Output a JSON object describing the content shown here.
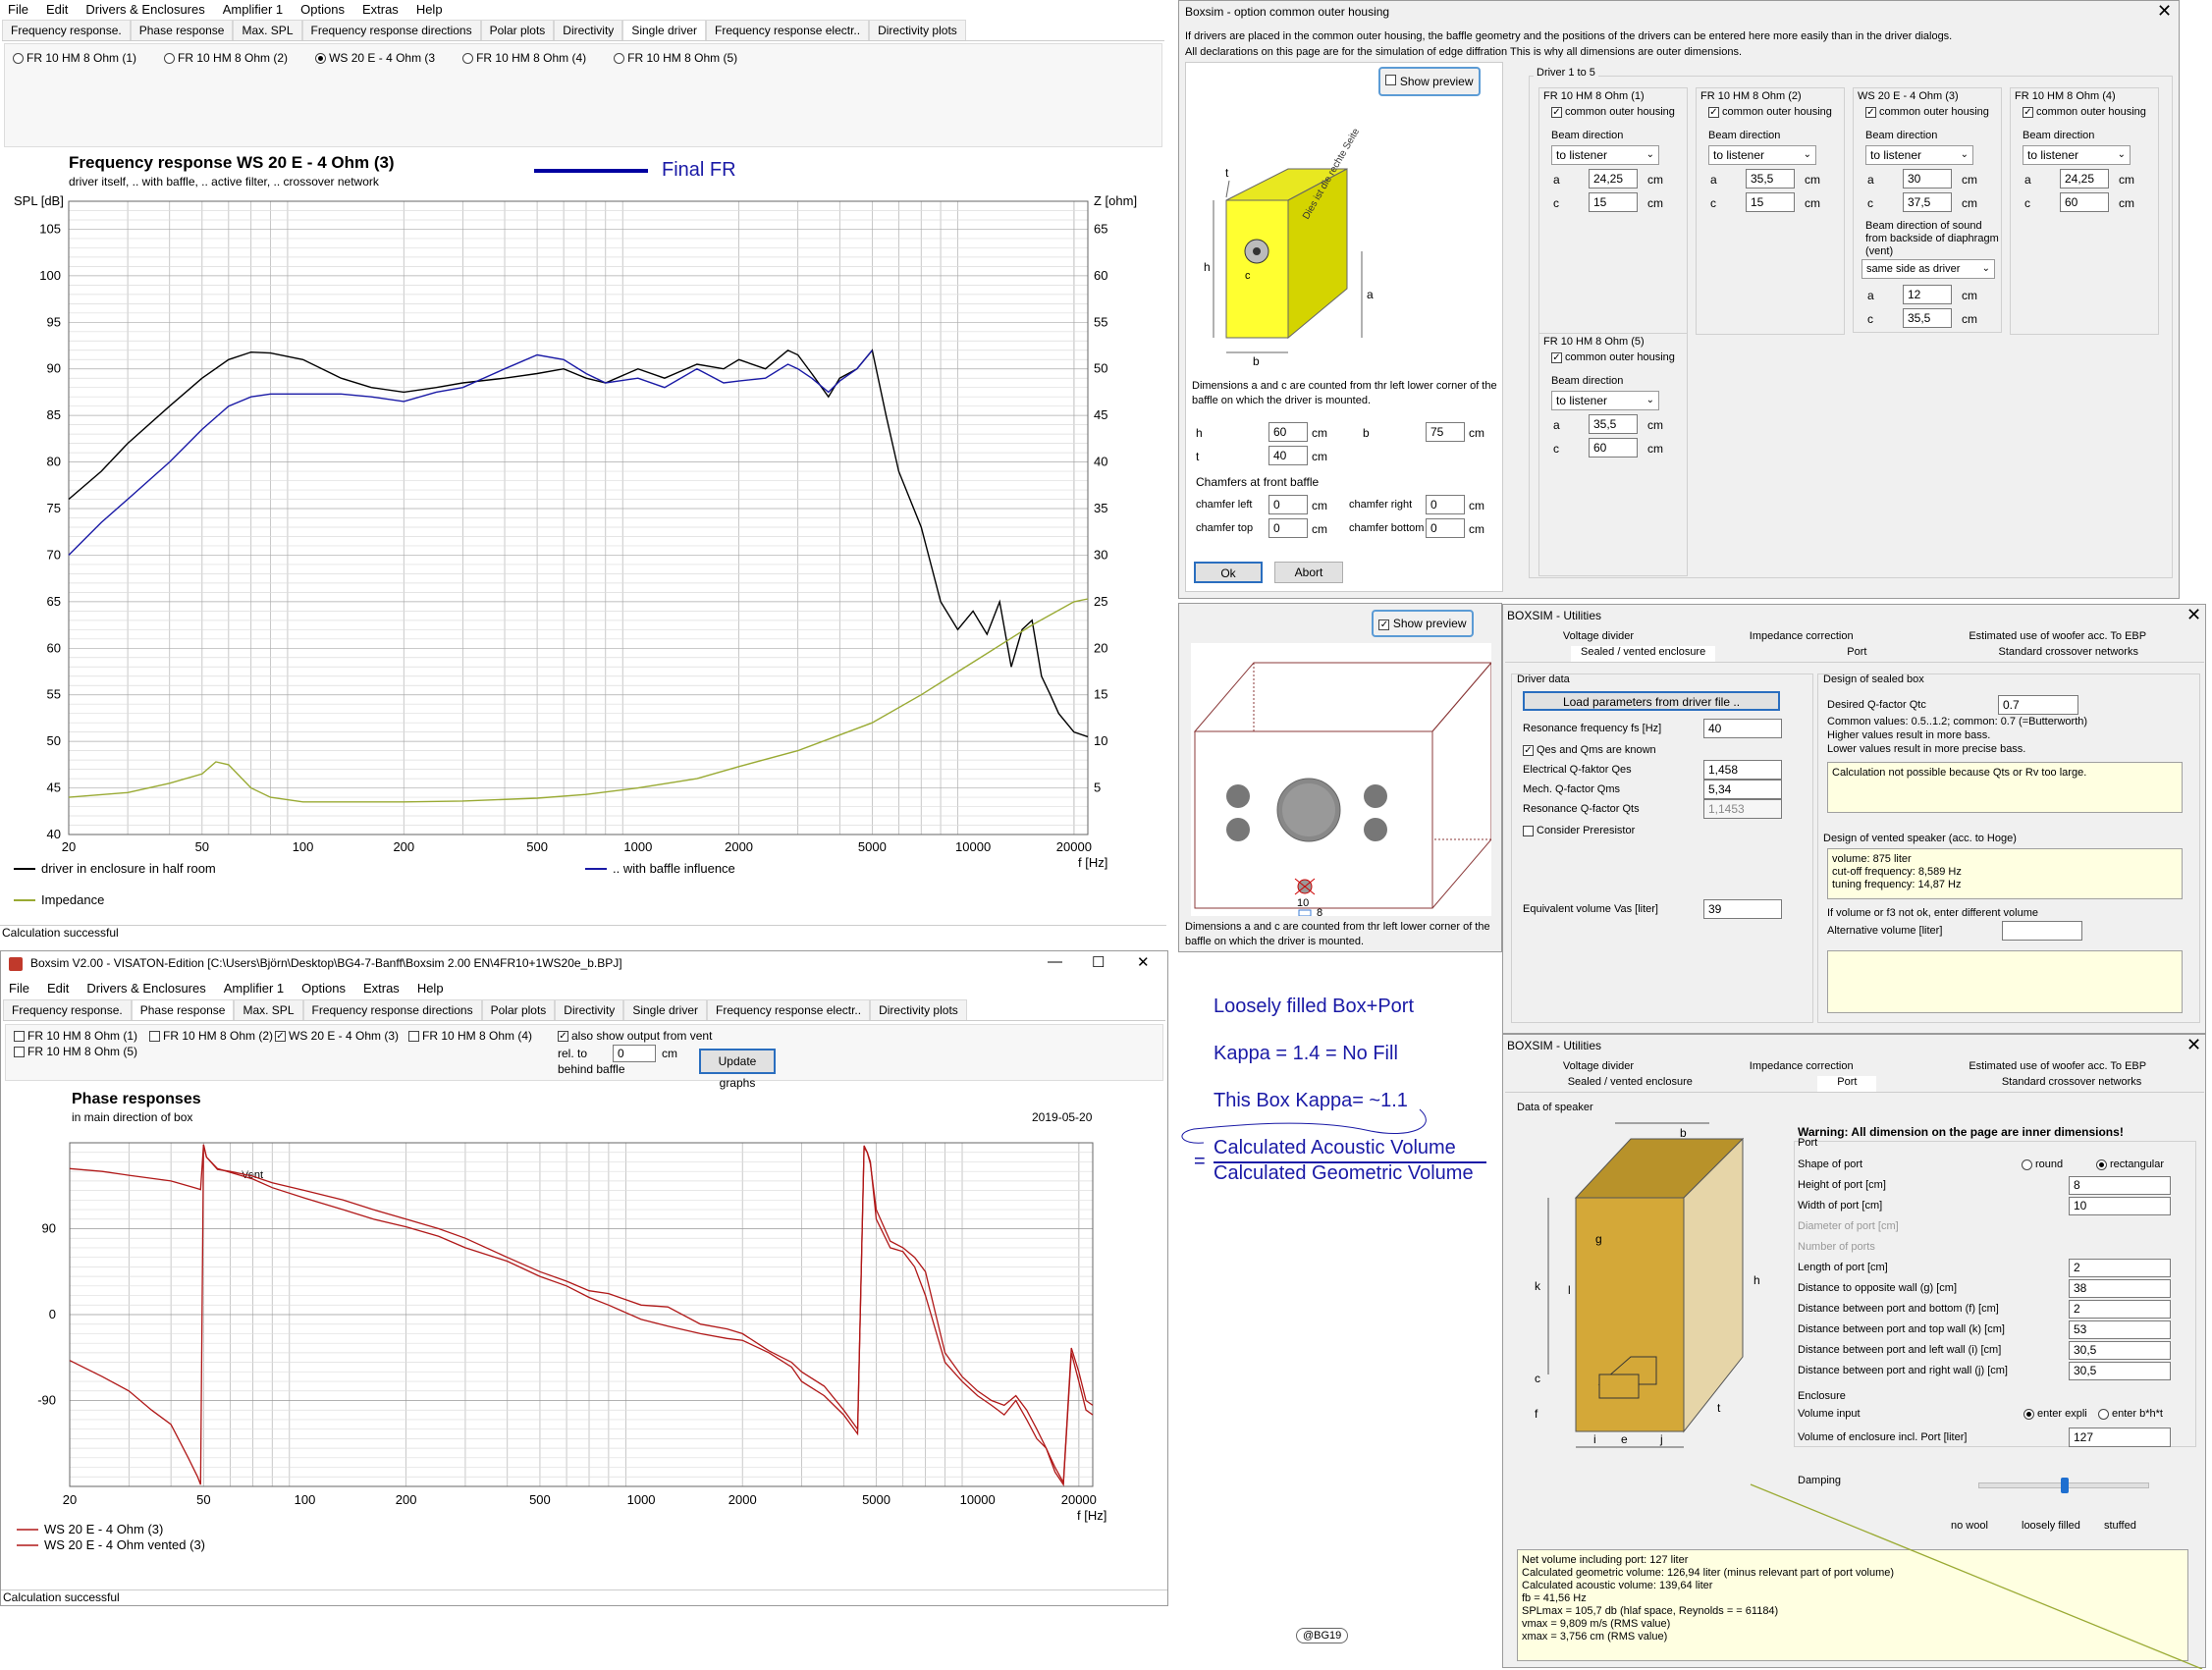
{
  "main": {
    "menu": [
      "File",
      "Edit",
      "Drivers & Enclosures",
      "Amplifier 1",
      "Options",
      "Extras",
      "Help"
    ],
    "tabs": [
      "Frequency response.",
      "Phase response",
      "Max. SPL",
      "Frequency response directions",
      "Polar plots",
      "Directivity",
      "Single driver",
      "Frequency response electr..",
      "Directivity plots"
    ],
    "drivers": [
      "FR 10 HM 8 Ohm (1)",
      "FR 10 HM 8 Ohm (2)",
      "WS 20 E - 4 Ohm  (3",
      "FR 10 HM 8 Ohm (4)",
      "FR 10 HM 8 Ohm (5)"
    ],
    "chart_title": "Frequency response WS 20 E - 4 Ohm   (3)",
    "chart_subtitle": "driver itself, .. with baffle, .. active filter, .. crossover network",
    "annotation": "Final FR",
    "status": "Calculation successful"
  },
  "phase_win": {
    "title": "Boxsim V2.00 - VISATON-Edition [C:\\Users\\Björn\\Desktop\\BG4-7-Banff\\Boxsim 2.00 EN\\4FR10+1WS20e_b.BPJ]",
    "win_buttons": [
      "—",
      "☐",
      "✕"
    ],
    "menu": [
      "File",
      "Edit",
      "Drivers & Enclosures",
      "Amplifier 1",
      "Options",
      "Extras",
      "Help"
    ],
    "tabs": [
      "Frequency response.",
      "Phase response",
      "Max. SPL",
      "Frequency response directions",
      "Polar plots",
      "Directivity",
      "Single driver",
      "Frequency response electr..",
      "Directivity plots"
    ],
    "drivers": [
      "FR 10 HM 8 Ohm (1)",
      "FR 10 HM 8 Ohm (5)",
      "FR 10 HM 8 Ohm (2)",
      "WS 20 E - 4 Ohm  (3)",
      "FR 10 HM 8 Ohm (4)"
    ],
    "vent_label": "also show output from vent",
    "rel_label": "rel. to",
    "rel_label2": "behind baffle",
    "rel_value": "0",
    "rel_unit": "cm",
    "update": "Update graphs",
    "chart_title": "Phase responses",
    "chart_subtitle": "in main direction of box",
    "date": "2019-05-20",
    "vent_anno": "Vent",
    "status": "Calculation successful"
  },
  "housing": {
    "title": "Boxsim - option common outer housing",
    "close": "✕",
    "info1": "If drivers are placed in the common outer housing,  the baffle geometry and the positions of the drivers can be entered here more easily than in the driver dialogs.",
    "info2": "All declarations on this page are for the simulation of edge diffration This is why all dimensions are outer dimensions.",
    "show_preview": "Show preview",
    "box_text": "Dies ist die rechte Seite",
    "diagram_labels": {
      "t": "t",
      "h": "h",
      "c": "c",
      "b": "b",
      "a": "a"
    },
    "dim_note": "Dimensions a and c are counted from thr left lower corner of the baffle on which the driver is mounted.",
    "h_label": "h",
    "h": "60",
    "b_label": "b",
    "b": "75",
    "t_label": "t",
    "t": "40",
    "unit": "cm",
    "chamfers": "Chamfers at front baffle",
    "chamfer_left": "chamfer left",
    "chamfer_right": "chamfer right",
    "chamfer_top": "chamfer top",
    "chamfer_bottom": "chamfer bottom",
    "chamfer_val": "0",
    "ok": "Ok",
    "abort": "Abort",
    "group": "Driver 1 to 5",
    "common": "common outer housing",
    "beam": "Beam direction",
    "to_listener": "to listener",
    "a_label": "a",
    "c_label": "c",
    "d1": {
      "name": "FR 10 HM 8 Ohm (1)",
      "a": "24,25",
      "c": "15"
    },
    "d2": {
      "name": "FR 10 HM 8 Ohm (2)",
      "a": "35,5",
      "c": "15"
    },
    "d3": {
      "name": "WS 20 E - 4 Ohm   (3)",
      "a": "30",
      "c": "37,5",
      "vent_beam": "Beam direction of sound from backside of diaphragm (vent)",
      "vent_sel": "same side as driver",
      "va": "12",
      "vc": "35,5"
    },
    "d4": {
      "name": "FR 10 HM 8 Ohm (4)",
      "a": "24,25",
      "c": "60"
    },
    "d5": {
      "name": "FR 10 HM 8 Ohm (5)",
      "a": "35,5",
      "c": "60"
    }
  },
  "preview": {
    "show_preview": "Show preview",
    "label10": "10",
    "label8": "8",
    "note": "Dimensions a and c are counted from thr left lower corner of the baffle on which the driver is mounted."
  },
  "annot": {
    "line1": "Loosely filled Box+Port",
    "line2": "Kappa = 1.4  = No Fill",
    "line3": "This Box Kappa= ~1.1",
    "eq": "=",
    "num": "Calculated Acoustic Volume",
    "den": "Calculated Geometric Volume",
    "credit": "@BG19"
  },
  "util1": {
    "title": "BOXSIM - Utilities",
    "close": "✕",
    "tabs_top": [
      "Voltage divider",
      "Impedance correction",
      "Estimated use of woofer acc. To EBP"
    ],
    "tabs_bot": [
      "Sealed / vented enclosure",
      "Port",
      "Standard crossover networks"
    ],
    "driver_data": "Driver data",
    "load": "Load parameters  from driver file ..",
    "fs_label": "Resonance frequency fs [Hz]",
    "fs": "40",
    "qes_known": "Qes and Qms are known",
    "qes_label": "Electrical Q-faktor Qes",
    "qes": "1,458",
    "qms_label": "Mech. Q-factor Qms",
    "qms": "5,34",
    "qts_label": "Resonance Q-factor Qts",
    "qts": "1,1453",
    "prer": "Consider Preresistor",
    "vas_label": "Equivalent volume Vas [liter]",
    "vas": "39",
    "sealed": "Design of sealed box",
    "qtc_label": "Desired Q-factor Qtc",
    "qtc": "0.7",
    "common_vals": "Common values: 0.5..1.2; common: 0.7 (=Butterworth)",
    "higher": "Higher values result in more bass.",
    "lower": "Lower values result in more precise bass.",
    "calc_err": "Calculation not possible because Qts or Rv too large.",
    "vented": "Design of vented speaker (acc. to Hoge)",
    "vented_res": "volume: 875 liter\ncut-off frequency: 8,589 Hz\ntuning frequency: 14,87 Hz",
    "alt_note": "If volume or f3 not ok, enter different volume",
    "alt_label": "Alternative volume [liter]"
  },
  "util2": {
    "title": "BOXSIM - Utilities",
    "close": "✕",
    "tabs_top": [
      "Voltage divider",
      "Impedance correction",
      "Estimated use of woofer acc. To EBP"
    ],
    "tabs_bot": [
      "Sealed / vented enclosure",
      "Port",
      "Standard crossover networks"
    ],
    "data": "Data of speaker",
    "warning": "Warning: All dimension on the page are inner dimensions!",
    "port": "Port",
    "shape": "Shape of port",
    "round": "round",
    "rect": "rectangular",
    "rows": [
      {
        "label": "Height of port [cm]",
        "val": "8"
      },
      {
        "label": "Width of port [cm]",
        "val": "10"
      },
      {
        "label": "Diameter of port [cm]",
        "val": ""
      },
      {
        "label": "Number of ports",
        "val": ""
      },
      {
        "label": "Length of port [cm]",
        "val": "2"
      },
      {
        "label": "Distance to opposite wall (g) [cm]",
        "val": "38"
      },
      {
        "label": "Distance between port and bottom (f) [cm]",
        "val": "2"
      },
      {
        "label": "Distance between port and top wall (k) [cm]",
        "val": "53"
      },
      {
        "label": "Distance between port and left wall (i) [cm]",
        "val": "30,5"
      },
      {
        "label": "Distance between port and right wall (j) [cm]",
        "val": "30,5"
      }
    ],
    "enclosure": "Enclosure",
    "vol_input": "Volume input",
    "explicit": "enter expli",
    "bht": "enter b*h*t",
    "vol_label": "Volume of enclosure incl. Port [liter]",
    "vol": "127",
    "damping": "Damping",
    "damp_levels": [
      "no wool",
      "loosely filled",
      "stuffed"
    ],
    "damping_level": 0.5,
    "box_labels": {
      "b": "b",
      "h": "h",
      "t": "t",
      "g": "g",
      "k": "k",
      "l": "l",
      "c": "c",
      "f": "f",
      "i": "i",
      "e": "e",
      "j": "j"
    },
    "results": "Net volume including port: 127 liter\nCalculated geometric volume: 126,94 liter (minus relevant part of port volume)\nCalculated acoustic volume: 139,64 liter\nfb = 41,56 Hz\nSPLmax = 105,7 db (hlaf space, Reynolds = = 61184)\nvmax = 9,809 m/s (RMS value)\nxmax = 3,756 cm (RMS value)"
  },
  "chart_data": [
    {
      "type": "line",
      "title": "Frequency response WS 20 E - 4 Ohm   (3)",
      "xlabel": "f [Hz]",
      "ylabel": "SPL [dB]",
      "y2label": "Z [ohm]",
      "xscale": "log",
      "xlim": [
        20,
        22000
      ],
      "ylim": [
        40,
        108
      ],
      "y2lim": [
        0,
        68
      ],
      "xticks": [
        20,
        50,
        100,
        200,
        500,
        1000,
        2000,
        5000,
        10000,
        20000
      ],
      "xtick_labels": [
        "20",
        "50",
        "100",
        "200",
        "500",
        "1000",
        "2000",
        "5000",
        "10000",
        "20000"
      ],
      "yticks": [
        40,
        45,
        50,
        55,
        60,
        65,
        70,
        75,
        80,
        85,
        90,
        95,
        100,
        105
      ],
      "y2ticks": [
        5,
        10,
        15,
        20,
        25,
        30,
        35,
        40,
        45,
        50,
        55,
        60,
        65
      ],
      "legend": [
        "driver in enclosure in half room",
        ".. with baffle influence",
        "Impedance"
      ],
      "series": [
        {
          "name": "driver in enclosure in half room",
          "color": "#000000",
          "axis": "left",
          "x": [
            20,
            25,
            30,
            40,
            50,
            60,
            70,
            80,
            100,
            130,
            160,
            200,
            250,
            300,
            400,
            500,
            600,
            700,
            800,
            1000,
            1200,
            1500,
            1800,
            2000,
            2400,
            2800,
            3000,
            3300,
            3700,
            4000,
            4500,
            5000,
            5500,
            6000,
            7000,
            8000,
            9000,
            10000,
            11000,
            12000,
            13000,
            14000,
            15000,
            16000,
            17000,
            18000,
            20000,
            22000
          ],
          "y": [
            76,
            79,
            82,
            86,
            89,
            91,
            91.8,
            91.7,
            91,
            89,
            88,
            87.5,
            88,
            88.5,
            89,
            89.5,
            90,
            89,
            88.5,
            90,
            89,
            90.5,
            90,
            91,
            90,
            92,
            91.5,
            89.5,
            87,
            89,
            90,
            92,
            85,
            79,
            73,
            65,
            62,
            64,
            61.5,
            65,
            58,
            62,
            63,
            57,
            55,
            53,
            51,
            50.5
          ]
        },
        {
          "name": ".. with baffle influence",
          "color": "#1a1aa6",
          "axis": "left",
          "x": [
            20,
            25,
            30,
            40,
            50,
            60,
            70,
            80,
            100,
            130,
            160,
            200,
            250,
            300,
            400,
            500,
            600,
            700,
            800,
            1000,
            1200,
            1500,
            1800,
            2000,
            2400,
            2800,
            3000,
            3300,
            3700,
            4000,
            4500,
            5000
          ],
          "y": [
            70,
            73.5,
            76,
            80,
            83.5,
            86,
            87,
            87.3,
            87.3,
            87.3,
            87,
            86.5,
            87.5,
            88,
            90,
            91.5,
            91,
            89.5,
            88.5,
            89,
            88,
            90,
            88.5,
            88.7,
            89,
            90.5,
            90,
            89,
            87.5,
            88.7,
            90,
            92
          ]
        },
        {
          "name": "Impedance",
          "color": "#99aa33",
          "axis": "right",
          "x": [
            20,
            30,
            40,
            50,
            55,
            60,
            70,
            80,
            100,
            150,
            200,
            300,
            500,
            700,
            1000,
            1500,
            2000,
            3000,
            5000,
            7000,
            10000,
            15000,
            20000,
            22000
          ],
          "y": [
            4,
            4.5,
            5.5,
            6.5,
            7.8,
            7.5,
            5,
            4,
            3.5,
            3.5,
            3.5,
            3.6,
            3.9,
            4.3,
            5,
            6,
            7.3,
            9,
            12,
            15,
            18.5,
            22.5,
            25,
            25.3
          ]
        }
      ]
    },
    {
      "type": "line",
      "title": "Phase responses",
      "subtitle": "in main direction of box",
      "xlabel": "f [Hz]",
      "xscale": "log",
      "xlim": [
        20,
        22000
      ],
      "ylim": [
        -180,
        180
      ],
      "xticks": [
        20,
        50,
        100,
        200,
        500,
        1000,
        2000,
        5000,
        10000,
        20000
      ],
      "xtick_labels": [
        "20",
        "50",
        "100",
        "200",
        "500",
        "1000",
        "2000",
        "5000",
        "10000",
        "20000"
      ],
      "yticks": [
        90,
        0,
        -90
      ],
      "legend": [
        "WS 20 E - 4 Ohm  (3)",
        "WS 20 E - 4 Ohm   vented (3)"
      ],
      "series": [
        {
          "name": "WS 20 E - 4 Ohm  (3)",
          "color": "#b01818",
          "x": [
            20,
            25,
            30,
            40,
            47,
            49,
            50,
            51,
            55,
            60,
            70,
            80,
            100,
            130,
            160,
            200,
            250,
            300,
            400,
            500,
            600,
            700,
            800,
            1000,
            1200,
            1500,
            1800,
            2000,
            2400,
            2800,
            3000,
            3500,
            4000,
            4400,
            4600,
            4700,
            4800,
            5000,
            5500,
            6000,
            6500,
            7000,
            8000,
            9000,
            10000,
            11000,
            12000,
            13000,
            14000,
            15000,
            16000,
            17000,
            18000,
            19000,
            20000,
            21000,
            22000
          ],
          "y": [
            153,
            150,
            146,
            140,
            133,
            131,
            178,
            165,
            152,
            150,
            145,
            138,
            130,
            120,
            110,
            100,
            90,
            80,
            60,
            45,
            35,
            25,
            22,
            10,
            8,
            -10,
            -15,
            -20,
            -38,
            -50,
            -60,
            -75,
            -100,
            -120,
            175,
            170,
            160,
            100,
            70,
            66,
            50,
            20,
            -50,
            -70,
            -85,
            -95,
            -105,
            -90,
            -110,
            -130,
            -140,
            -165,
            -178,
            -40,
            -70,
            -100,
            -105
          ]
        },
        {
          "name": "WS 20 E - 4 Ohm   vented (3)",
          "color": "#b01818",
          "x": [
            20,
            25,
            30,
            35,
            40,
            45,
            48,
            49,
            50,
            51,
            55,
            60,
            70,
            80,
            100,
            130,
            160,
            200,
            250,
            300,
            400,
            500,
            600,
            700,
            800,
            1000,
            1200,
            1500,
            1800,
            2000,
            2400,
            2800,
            3000,
            3500,
            4000,
            4400,
            4600,
            4700,
            4800,
            5000,
            5500,
            6000,
            6500,
            7000,
            8000,
            9000,
            10000,
            11000,
            12000,
            13000,
            14000,
            15000,
            16000,
            17000,
            18000,
            19000,
            20000,
            21000,
            22000
          ],
          "y": [
            -48,
            -65,
            -80,
            -100,
            -115,
            -150,
            -170,
            -178,
            178,
            165,
            153,
            149,
            142,
            133,
            122,
            110,
            100,
            92,
            82,
            70,
            56,
            40,
            30,
            18,
            10,
            -5,
            -12,
            -20,
            -25,
            -27,
            -40,
            -55,
            -70,
            -85,
            -105,
            -125,
            177,
            170,
            158,
            110,
            77,
            70,
            60,
            45,
            -40,
            -65,
            -80,
            -90,
            -95,
            -85,
            -100,
            -120,
            -140,
            -160,
            -176,
            -35,
            -60,
            -90,
            -95
          ]
        }
      ]
    }
  ]
}
